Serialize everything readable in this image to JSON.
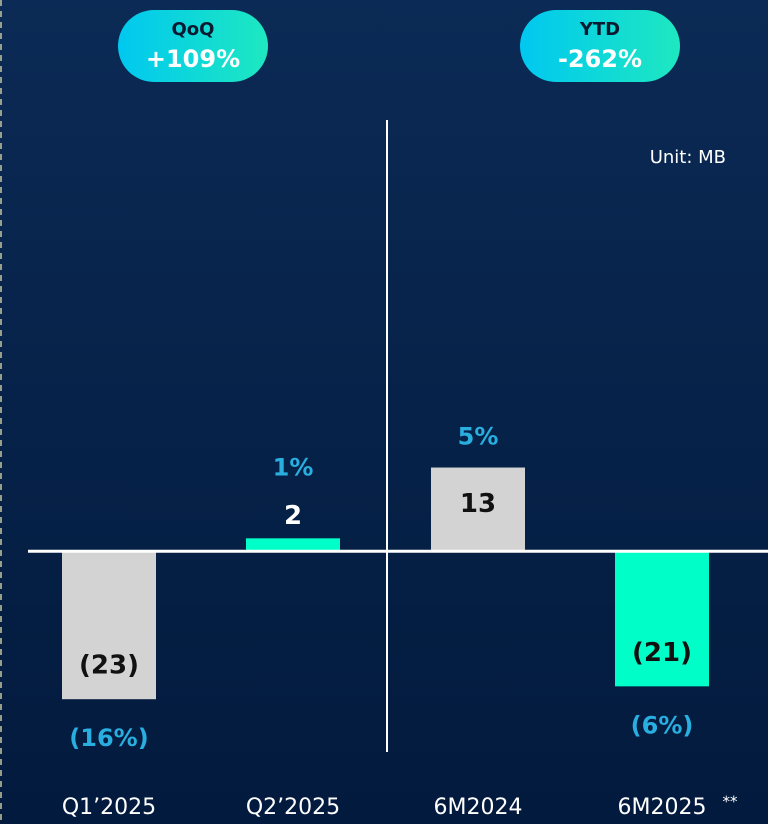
{
  "chart_data": {
    "type": "bar",
    "badges": [
      {
        "title": "QoQ",
        "value": "+109%"
      },
      {
        "title": "YTD",
        "value": "-262%"
      }
    ],
    "unit": "Unit: MB",
    "categories": [
      "Q1’2025",
      "Q2’2025",
      "6M2024",
      "6M2025"
    ],
    "values": [
      -23,
      2,
      13,
      -21
    ],
    "value_labels": [
      "(23)",
      "2",
      "13",
      "(21)"
    ],
    "percent_labels": [
      "(16%)",
      "1%",
      "5%",
      "(6%)"
    ],
    "colors": [
      "#d3d3d3",
      "#00ffc8",
      "#d3d3d3",
      "#00ffc8"
    ],
    "annotation": "**",
    "ylim": [
      -34,
      67
    ]
  }
}
